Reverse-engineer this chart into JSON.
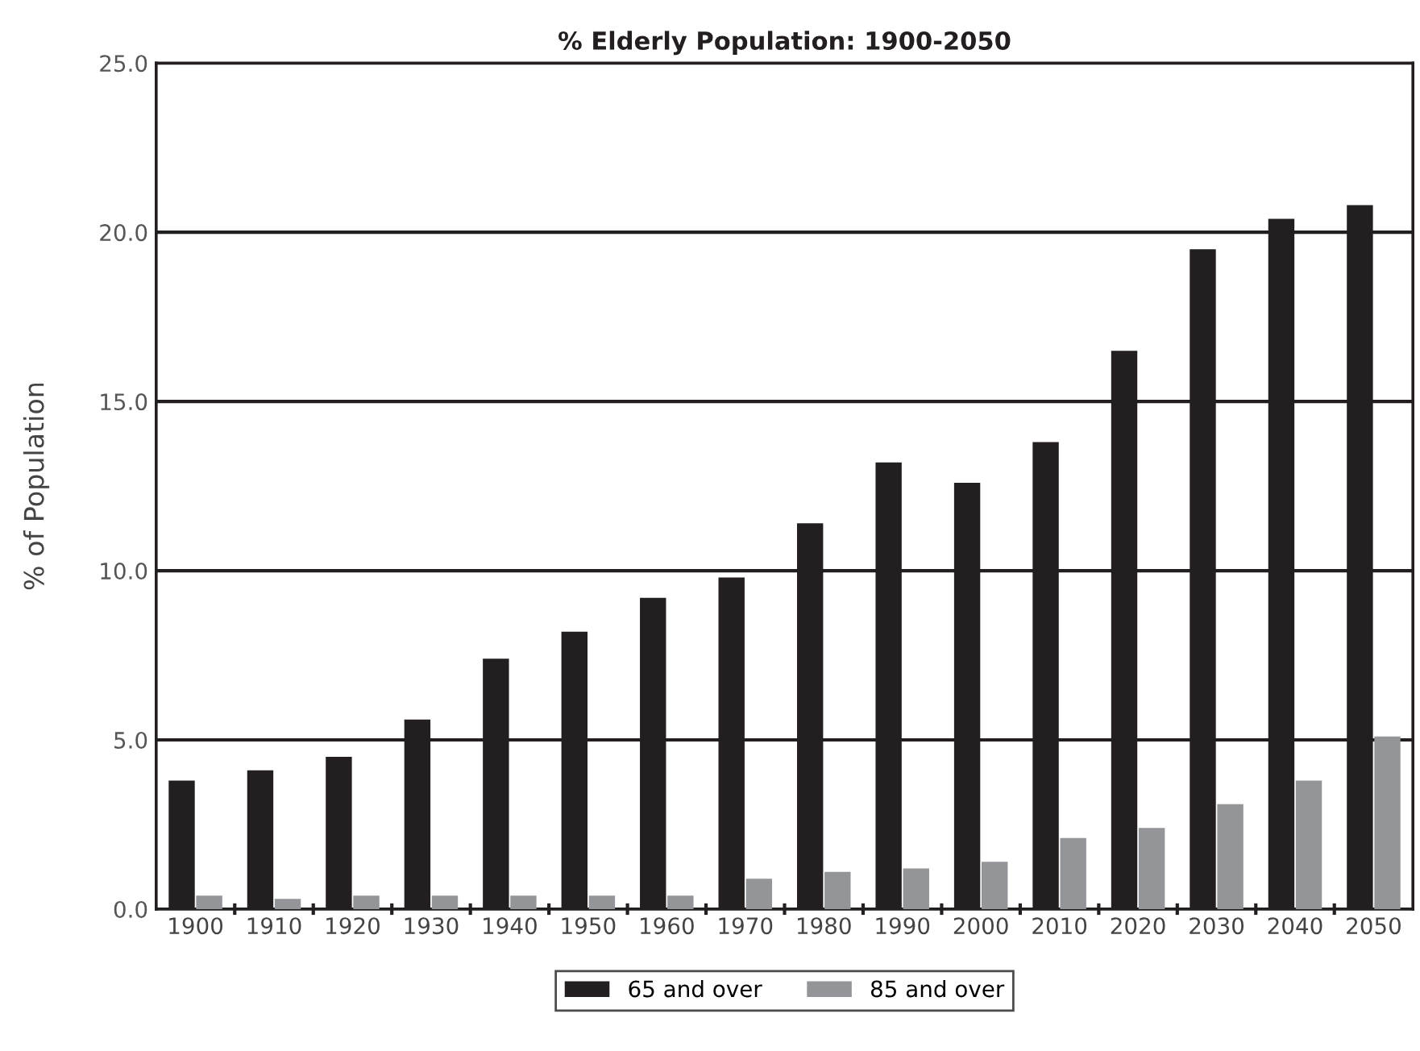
{
  "chart_data": {
    "type": "bar",
    "title": "% Elderly Population: 1900-2050",
    "ylabel": "% of Population",
    "categories": [
      "1900",
      "1910",
      "1920",
      "1930",
      "1940",
      "1950",
      "1960",
      "1970",
      "1980",
      "1990",
      "2000",
      "2010",
      "2020",
      "2030",
      "2040",
      "2050"
    ],
    "series": [
      {
        "name": "65 and over",
        "color": "#231f20",
        "values": [
          3.8,
          4.1,
          4.5,
          5.6,
          7.4,
          8.2,
          9.2,
          9.8,
          11.4,
          13.2,
          12.6,
          13.8,
          16.5,
          19.5,
          20.4,
          20.8
        ]
      },
      {
        "name": "85 and over",
        "color": "#939598",
        "values": [
          0.4,
          0.3,
          0.4,
          0.4,
          0.4,
          0.4,
          0.4,
          0.9,
          1.1,
          1.2,
          1.4,
          2.1,
          2.4,
          3.1,
          3.8,
          5.1
        ]
      }
    ],
    "ylim": [
      0,
      25
    ],
    "yticks": [
      {
        "value": 0,
        "label": "0.0"
      },
      {
        "value": 5,
        "label": "5.0"
      },
      {
        "value": 10,
        "label": "10.0"
      },
      {
        "value": 15,
        "label": "15.0"
      },
      {
        "value": 20,
        "label": "20.0"
      },
      {
        "value": 25,
        "label": "25.0"
      }
    ],
    "grid": "y",
    "legend": "bottom"
  }
}
